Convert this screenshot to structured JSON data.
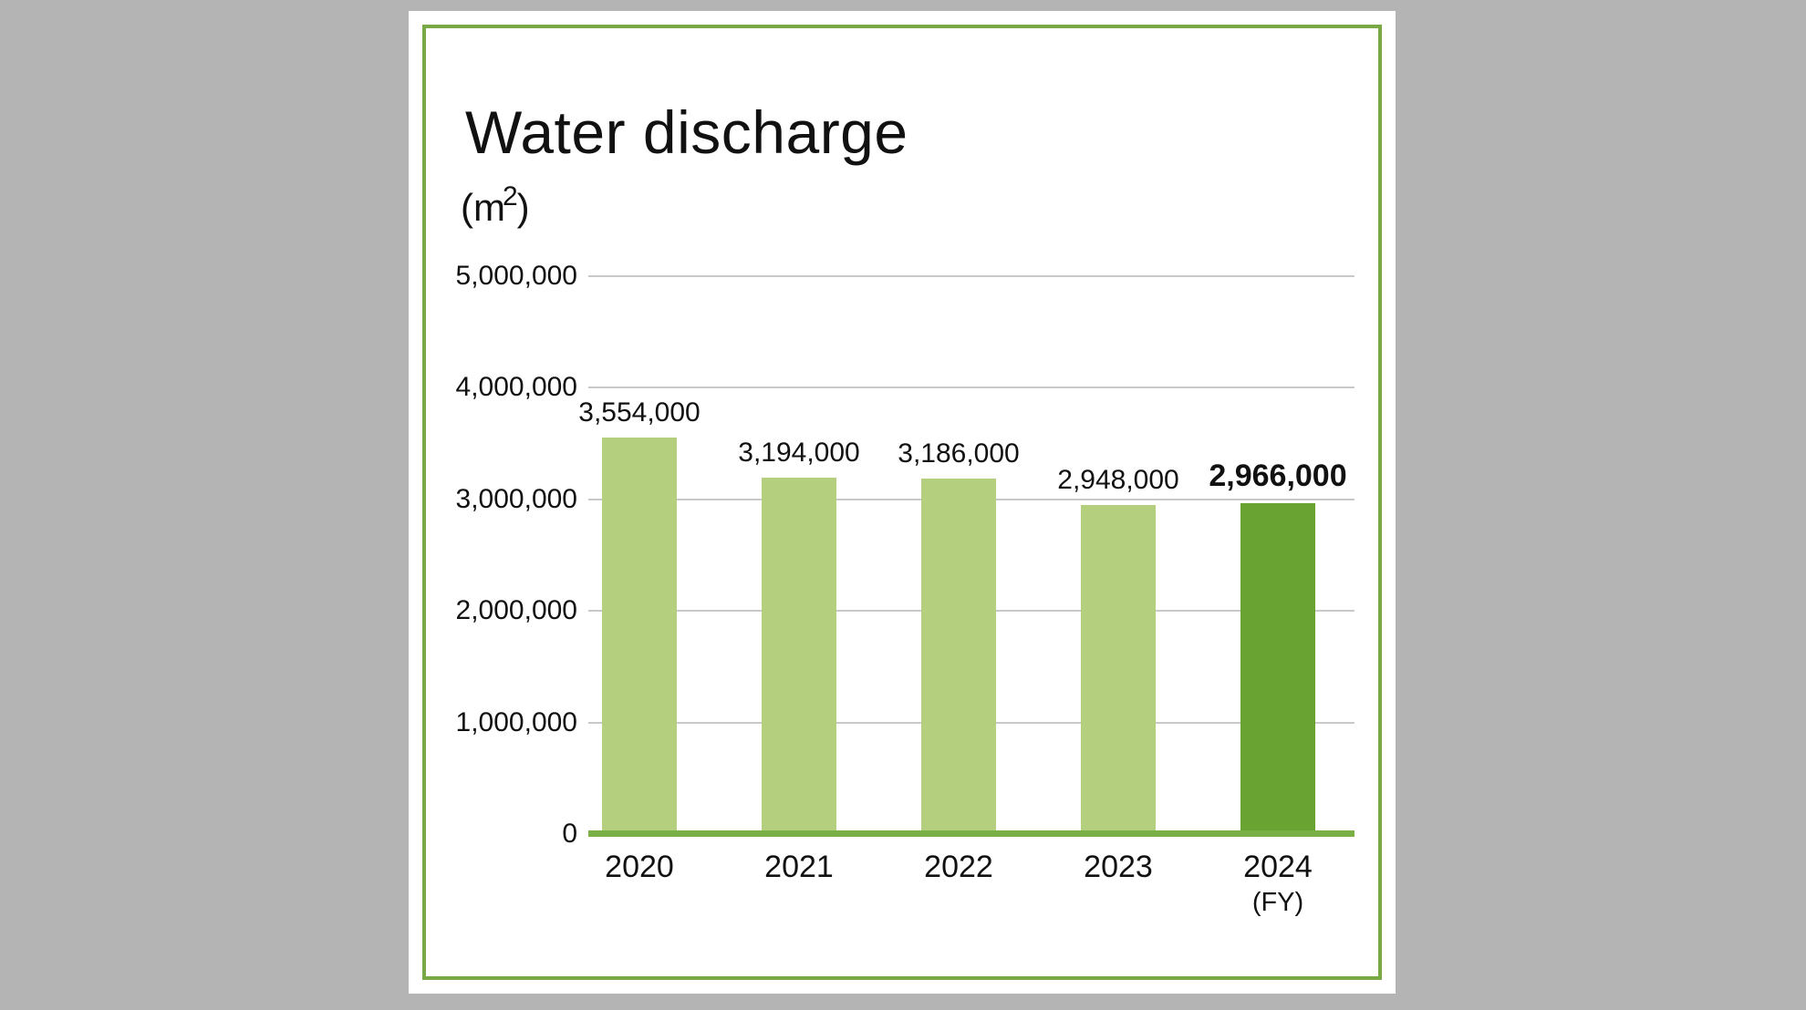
{
  "chart_data": {
    "type": "bar",
    "title": "Water discharge",
    "unit_label": {
      "open": "(m",
      "sup": "2",
      "close": ")"
    },
    "categories": [
      "2020",
      "2021",
      "2022",
      "2023",
      "2024"
    ],
    "x_axis_suffix": "(FY)",
    "values": [
      3554000,
      3194000,
      3186000,
      2948000,
      2966000
    ],
    "value_labels": [
      "3,554,000",
      "3,194,000",
      "3,186,000",
      "2,948,000",
      "2,966,000"
    ],
    "y_ticks": [
      "5,000,000",
      "4,000,000",
      "3,000,000",
      "2,000,000",
      "1,000,000",
      "0"
    ],
    "ylim": [
      0,
      5000000
    ],
    "grid": true,
    "legend": "none",
    "highlight_index": 4,
    "colors": {
      "bar": "#b4d07f",
      "bar_highlight": "#69a432",
      "axis_line": "#7bb046",
      "gridline": "#c9c9c9",
      "frame": "#78a944",
      "background": "#b4b4b4",
      "text": "#111111"
    }
  }
}
